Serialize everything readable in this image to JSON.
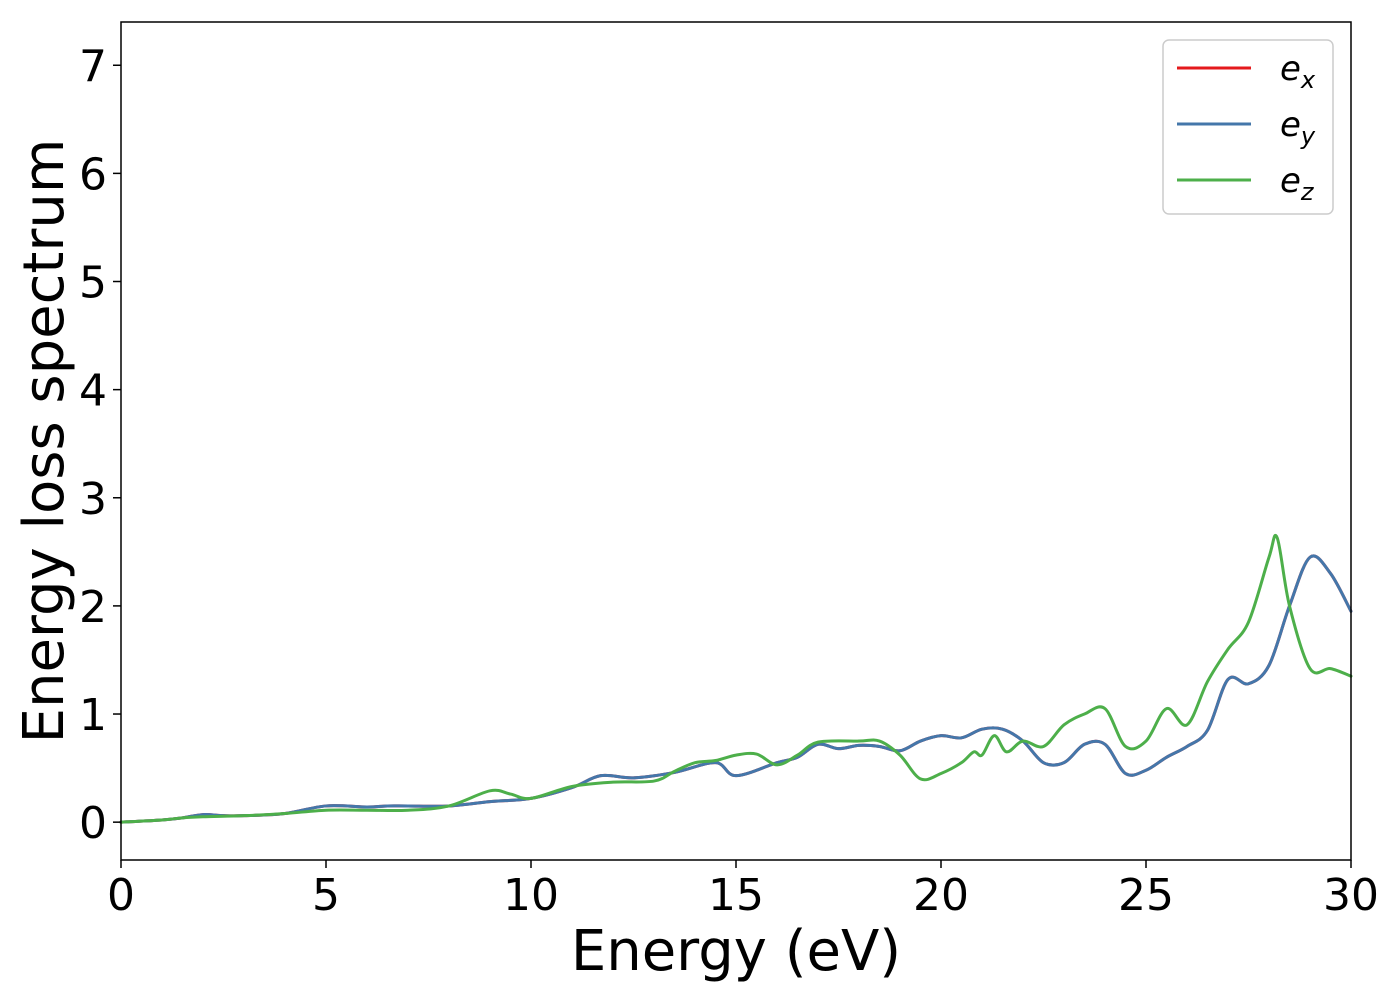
{
  "chart_data": {
    "type": "line",
    "title": "",
    "xlabel": "Energy (eV)",
    "ylabel": "Energy loss spectrum",
    "xlim": [
      0,
      30
    ],
    "ylim": [
      -0.35,
      7.4
    ],
    "xticks": [
      0,
      5,
      10,
      15,
      20,
      25,
      30
    ],
    "yticks": [
      0,
      1,
      2,
      3,
      4,
      5,
      6,
      7
    ],
    "grid": false,
    "legend_position": "top-right",
    "series": [
      {
        "name": "e_x",
        "legend_base": "e",
        "legend_sub": "x",
        "color": "#e41a1c",
        "x": [
          0,
          1,
          1.5,
          2,
          2.5,
          3,
          4,
          5,
          6,
          6.5,
          7,
          8,
          9,
          10,
          11,
          11.7,
          12.5,
          13.5,
          14.5,
          15,
          16,
          16.5,
          17,
          17.5,
          18,
          18.5,
          19,
          19.5,
          20,
          20.5,
          21,
          21.5,
          22,
          22.5,
          23,
          23.5,
          24,
          24.5,
          25,
          25.5,
          26,
          26.5,
          27,
          27.5,
          28,
          28.5,
          29,
          29.5,
          30
        ],
        "y": [
          0,
          0.02,
          0.04,
          0.07,
          0.06,
          0.06,
          0.08,
          0.15,
          0.14,
          0.15,
          0.15,
          0.15,
          0.19,
          0.22,
          0.32,
          0.43,
          0.41,
          0.46,
          0.55,
          0.43,
          0.55,
          0.6,
          0.72,
          0.68,
          0.71,
          0.7,
          0.66,
          0.75,
          0.8,
          0.78,
          0.86,
          0.86,
          0.75,
          0.55,
          0.55,
          0.72,
          0.72,
          0.45,
          0.48,
          0.6,
          0.7,
          0.85,
          1.32,
          1.28,
          1.45,
          2.0,
          2.45,
          2.3,
          1.95
        ]
      },
      {
        "name": "e_y",
        "legend_base": "e",
        "legend_sub": "y",
        "color": "#4477aa",
        "x": [
          0,
          1,
          1.5,
          2,
          2.5,
          3,
          4,
          5,
          6,
          6.5,
          7,
          8,
          9,
          10,
          11,
          11.7,
          12.5,
          13.5,
          14.5,
          15,
          16,
          16.5,
          17,
          17.5,
          18,
          18.5,
          19,
          19.5,
          20,
          20.5,
          21,
          21.5,
          22,
          22.5,
          23,
          23.5,
          24,
          24.5,
          25,
          25.5,
          26,
          26.5,
          27,
          27.5,
          28,
          28.5,
          29,
          29.5,
          30
        ],
        "y": [
          0,
          0.02,
          0.04,
          0.07,
          0.06,
          0.06,
          0.08,
          0.15,
          0.14,
          0.15,
          0.15,
          0.15,
          0.19,
          0.22,
          0.32,
          0.43,
          0.41,
          0.46,
          0.55,
          0.43,
          0.55,
          0.6,
          0.72,
          0.68,
          0.71,
          0.7,
          0.66,
          0.75,
          0.8,
          0.78,
          0.86,
          0.86,
          0.75,
          0.55,
          0.55,
          0.72,
          0.72,
          0.45,
          0.48,
          0.6,
          0.7,
          0.85,
          1.32,
          1.28,
          1.45,
          2.0,
          2.45,
          2.3,
          1.95
        ]
      },
      {
        "name": "e_z",
        "legend_base": "e",
        "legend_sub": "z",
        "color": "#4daf4a",
        "x": [
          0,
          1,
          1.5,
          2,
          3,
          4,
          5,
          6,
          7,
          8,
          9,
          9.5,
          10,
          11,
          12,
          13,
          13.5,
          14,
          14.5,
          15,
          15.5,
          16,
          16.5,
          17,
          18,
          18.5,
          19,
          19.5,
          20,
          20.5,
          20.8,
          21,
          21.3,
          21.6,
          22,
          22.5,
          23,
          23.5,
          24,
          24.5,
          25,
          25.5,
          26,
          26.5,
          27,
          27.5,
          28,
          28.2,
          28.5,
          29,
          29.5,
          30
        ],
        "y": [
          0,
          0.02,
          0.04,
          0.05,
          0.06,
          0.08,
          0.11,
          0.11,
          0.11,
          0.15,
          0.29,
          0.26,
          0.22,
          0.33,
          0.37,
          0.38,
          0.47,
          0.55,
          0.57,
          0.62,
          0.63,
          0.53,
          0.62,
          0.74,
          0.75,
          0.75,
          0.62,
          0.4,
          0.45,
          0.55,
          0.65,
          0.62,
          0.8,
          0.65,
          0.75,
          0.7,
          0.9,
          1.0,
          1.05,
          0.7,
          0.75,
          1.05,
          0.9,
          1.3,
          1.6,
          1.85,
          2.45,
          2.63,
          2.0,
          1.42,
          1.42,
          1.35
        ]
      }
    ]
  }
}
